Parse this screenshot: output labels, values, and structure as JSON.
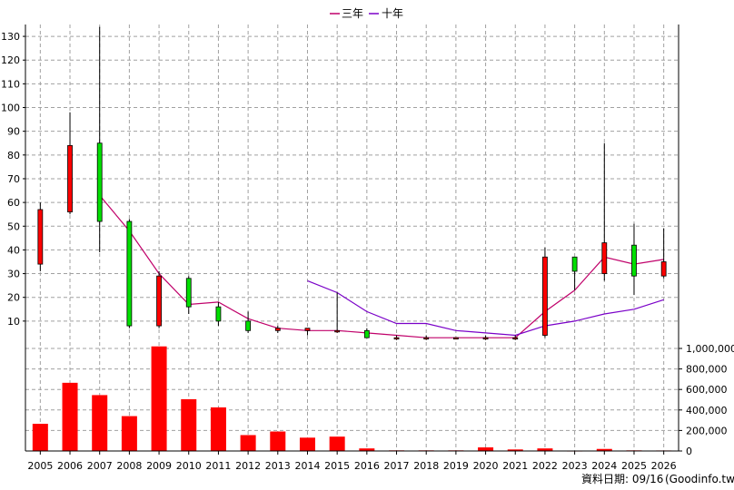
{
  "chart_data": {
    "type": "candlestick",
    "legend": [
      {
        "name": "三年",
        "color": "#c0006a"
      },
      {
        "name": "十年",
        "color": "#7a00c8"
      }
    ],
    "years": [
      "2005",
      "2006",
      "2007",
      "2008",
      "2009",
      "2010",
      "2011",
      "2012",
      "2013",
      "2014",
      "2015",
      "2016",
      "2017",
      "2018",
      "2019",
      "2020",
      "2021",
      "2022",
      "2023",
      "2024",
      "2025",
      "2026"
    ],
    "price_axis": {
      "min": 0,
      "max": 135,
      "ticks": [
        10,
        20,
        30,
        40,
        50,
        60,
        70,
        80,
        90,
        100,
        110,
        120,
        130
      ]
    },
    "volume_axis": {
      "min": 0,
      "max": 1000000,
      "ticks": [
        "0",
        "200,000",
        "400,000",
        "600,000",
        "800,000",
        "1,000,000"
      ],
      "tick_values": [
        0,
        200000,
        400000,
        600000,
        800000,
        1000000
      ]
    },
    "candles": [
      {
        "o": 34,
        "h": 60,
        "l": 31,
        "c": 57,
        "up": false
      },
      {
        "o": 56,
        "h": 98,
        "l": 55,
        "c": 84,
        "up": false
      },
      {
        "o": 85,
        "h": 134,
        "l": 39,
        "c": 52,
        "up": true
      },
      {
        "o": 52,
        "h": 53,
        "l": 7,
        "c": 8,
        "up": true
      },
      {
        "o": 8,
        "h": 31,
        "l": 7,
        "c": 29,
        "up": false
      },
      {
        "o": 28,
        "h": 29,
        "l": 13,
        "c": 16,
        "up": true
      },
      {
        "o": 16,
        "h": 18,
        "l": 8,
        "c": 10,
        "up": true
      },
      {
        "o": 10,
        "h": 14,
        "l": 5,
        "c": 6,
        "up": true
      },
      {
        "o": 6,
        "h": 8,
        "l": 5,
        "c": 7,
        "up": false
      },
      {
        "o": 7,
        "h": 7,
        "l": 4,
        "c": 6,
        "up": false
      },
      {
        "o": 6,
        "h": 22,
        "l": 5,
        "c": 6,
        "up": false
      },
      {
        "o": 6,
        "h": 7,
        "l": 3,
        "c": 3,
        "up": true
      },
      {
        "o": 3,
        "h": 4,
        "l": 2,
        "c": 3,
        "up": false
      },
      {
        "o": 3,
        "h": 4,
        "l": 2,
        "c": 3,
        "up": false
      },
      {
        "o": 3,
        "h": 3,
        "l": 2.5,
        "c": 3,
        "up": false
      },
      {
        "o": 3,
        "h": 4,
        "l": 2,
        "c": 3,
        "up": false
      },
      {
        "o": 3,
        "h": 4,
        "l": 2,
        "c": 3,
        "up": false
      },
      {
        "o": 4,
        "h": 41,
        "l": 3,
        "c": 37,
        "up": false
      },
      {
        "o": 31,
        "h": 37,
        "l": 23,
        "c": 37,
        "up": true
      },
      {
        "o": 30,
        "h": 85,
        "l": 27,
        "c": 43,
        "up": false
      },
      {
        "o": 29,
        "h": 51,
        "l": 21,
        "c": 42,
        "up": true
      },
      {
        "o": 35,
        "h": 49,
        "l": 28,
        "c": 29,
        "up": false
      }
    ],
    "series": [
      {
        "name": "三年",
        "start_index": 2,
        "values": [
          63,
          48,
          30,
          17,
          18,
          11,
          7,
          6,
          6,
          5,
          4,
          3,
          3,
          3,
          3,
          14,
          23,
          37,
          34,
          36
        ]
      },
      {
        "name": "十年",
        "start_index": 9,
        "values": [
          27,
          22,
          14,
          9,
          9,
          6,
          5,
          4,
          8,
          10,
          13,
          15,
          19
        ]
      }
    ],
    "volume": [
      265000,
      665000,
      545000,
      340000,
      1020000,
      505000,
      425000,
      155000,
      190000,
      130000,
      140000,
      25000,
      6000,
      6000,
      6000,
      35000,
      15000,
      25000,
      4000,
      20000,
      6000,
      5000
    ]
  },
  "footer": {
    "label": "資料日期: 09/16",
    "source": "(Goodinfo.tw)"
  },
  "colors": {
    "up": "#00e000",
    "down": "#ff0000",
    "grid": "#a0a0a0",
    "volume": "#ff0000"
  }
}
